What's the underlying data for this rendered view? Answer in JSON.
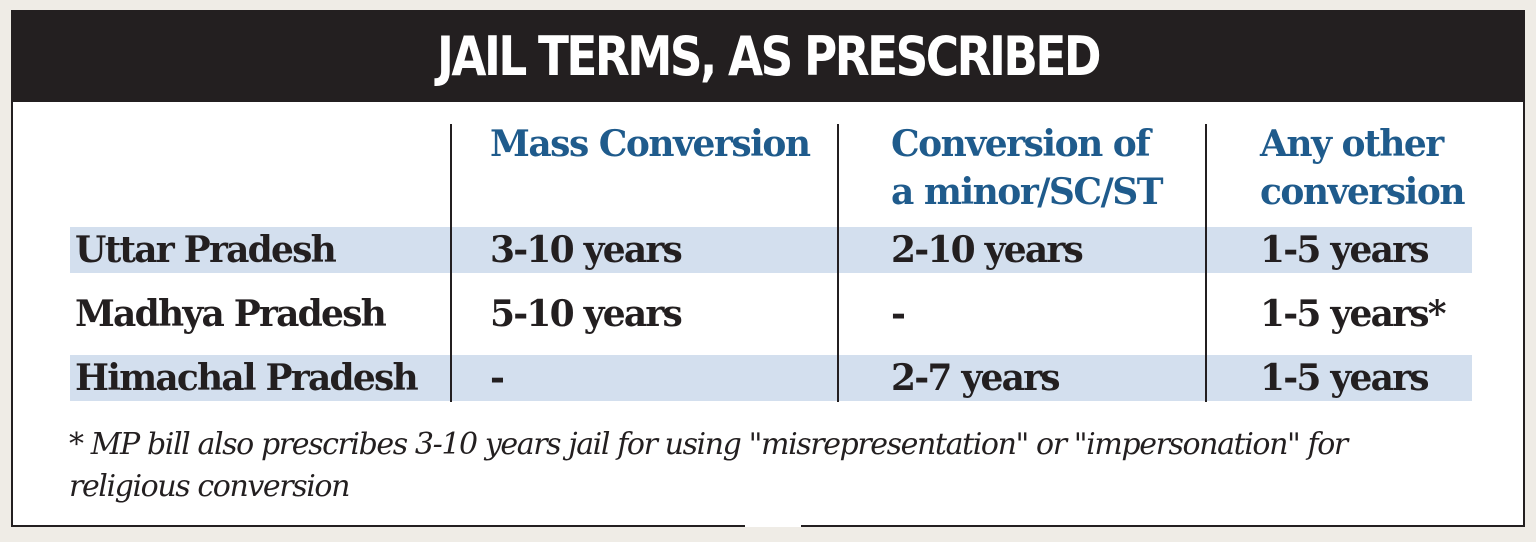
{
  "title": "JAIL TERMS, AS PRESCRIBED",
  "columns": [
    "Mass Conversion",
    "Conversion of\na minor/SC/ST",
    "Any other\nconversion"
  ],
  "rows": [
    {
      "state": "Uttar Pradesh",
      "mass": "3-10 years",
      "minor": "2-10 years",
      "other": "1-5 years"
    },
    {
      "state": "Madhya Pradesh",
      "mass": "5-10 years",
      "minor": "-",
      "other": "1-5 years*"
    },
    {
      "state": "Himachal Pradesh",
      "mass": "-",
      "minor": "2-7 years",
      "other": "1-5 years"
    }
  ],
  "footnote": "* MP bill also prescribes 3-10 years jail for using \"misrepresentation\" or \"impersonation\" for religious conversion",
  "colors": {
    "banner": "#231f20",
    "header_text": "#1f5b8c",
    "row_band": "#d3dfee"
  }
}
